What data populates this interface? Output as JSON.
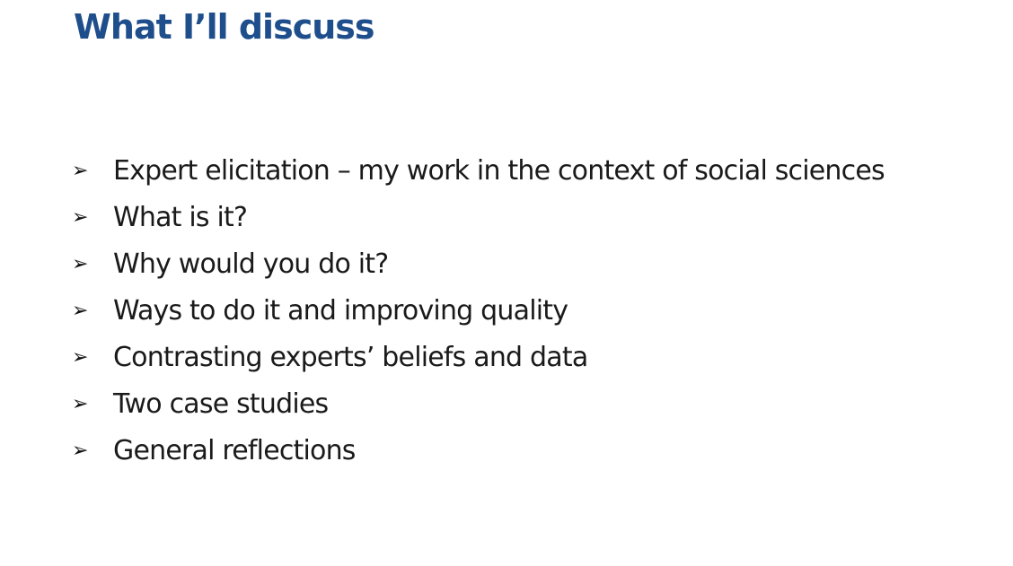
{
  "slide": {
    "title": "What I’ll discuss",
    "bullet_icon": "arrow-bullet-icon",
    "bullet_glyph": "➢",
    "title_color": "#1f4e8c",
    "bullets": [
      "Expert elicitation – my work in the context of social sciences",
      "What is it?",
      "Why would you do it?",
      "Ways to do it and improving quality",
      "Contrasting experts’ beliefs and data",
      "Two case studies",
      "General reflections"
    ]
  }
}
